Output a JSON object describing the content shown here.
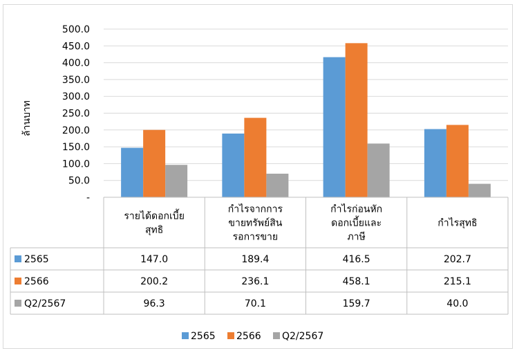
{
  "chart_data": {
    "type": "bar",
    "title": "",
    "xlabel": "",
    "ylabel": "ล้านบาท",
    "ylim": [
      0,
      500
    ],
    "yticks": [
      "-",
      "50.0",
      "100.0",
      "150.0",
      "200.0",
      "250.0",
      "300.0",
      "350.0",
      "400.0",
      "450.0",
      "500.0"
    ],
    "grid": true,
    "legend_position": "bottom",
    "categories": [
      [
        "รายได้ดอกเบี้ย",
        "สุทธิ"
      ],
      [
        "กำไรจากการ",
        "ขายทรัพย์สิน",
        "รอการขาย"
      ],
      [
        "กำไรก่อนหัก",
        "ดอกเบี้ยและ",
        "ภาษี"
      ],
      [
        "กำไรสุทธิ"
      ]
    ],
    "series": [
      {
        "name": "2565",
        "color": "#5b9bd5",
        "values": [
          147.0,
          189.4,
          416.5,
          202.7
        ],
        "labels": [
          "147.0",
          "189.4",
          "416.5",
          "202.7"
        ]
      },
      {
        "name": "2566",
        "color": "#ed7d31",
        "values": [
          200.2,
          236.1,
          458.1,
          215.1
        ],
        "labels": [
          "200.2",
          "236.1",
          "458.1",
          "215.1"
        ]
      },
      {
        "name": "Q2/2567",
        "color": "#a5a5a5",
        "values": [
          96.3,
          70.1,
          159.7,
          40.0
        ],
        "labels": [
          "96.3",
          "70.1",
          "159.7",
          "40.0"
        ]
      }
    ]
  }
}
